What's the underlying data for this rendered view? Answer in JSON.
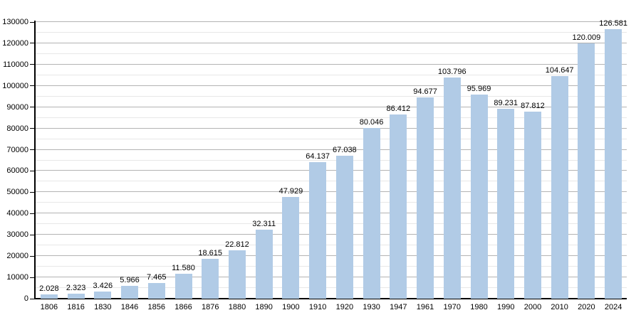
{
  "chart_data": {
    "type": "bar",
    "title": "",
    "xlabel": "",
    "ylabel": "",
    "categories": [
      "1806",
      "1816",
      "1830",
      "1846",
      "1856",
      "1866",
      "1876",
      "1880",
      "1890",
      "1900",
      "1910",
      "1920",
      "1930",
      "1947",
      "1961",
      "1970",
      "1980",
      "1990",
      "2000",
      "2010",
      "2020",
      "2024"
    ],
    "values": [
      2028,
      2323,
      3426,
      5966,
      7465,
      11580,
      18615,
      22812,
      32311,
      47929,
      64137,
      67038,
      80046,
      86412,
      94677,
      103796,
      95969,
      89231,
      87812,
      104647,
      120009,
      126581
    ],
    "value_labels": [
      "2.028",
      "2.323",
      "3.426",
      "5.966",
      "7.465",
      "11.580",
      "18.615",
      "22.812",
      "32.311",
      "47.929",
      "64.137",
      "67.038",
      "80.046",
      "86.412",
      "94.677",
      "103.796",
      "95.969",
      "89.231",
      "87.812",
      "104.647",
      "120.009",
      "126.581"
    ],
    "ylim": [
      0,
      130000
    ],
    "ytick_step": 10000,
    "ytick_minor_step": 5000,
    "ytick_labels": [
      "0",
      "10000",
      "20000",
      "30000",
      "40000",
      "50000",
      "60000",
      "70000",
      "80000",
      "90000",
      "100000",
      "110000",
      "120000",
      "130000"
    ],
    "grid": "horizontal major and minor, no vertical grid",
    "legend": "none",
    "colors": {
      "bar_fill": "#b1cbe6",
      "major_gridline": "#b3b3b3",
      "minor_gridline": "#e8e8e8",
      "axis": "#000000",
      "text": "#000000",
      "background": "#ffffff"
    }
  }
}
